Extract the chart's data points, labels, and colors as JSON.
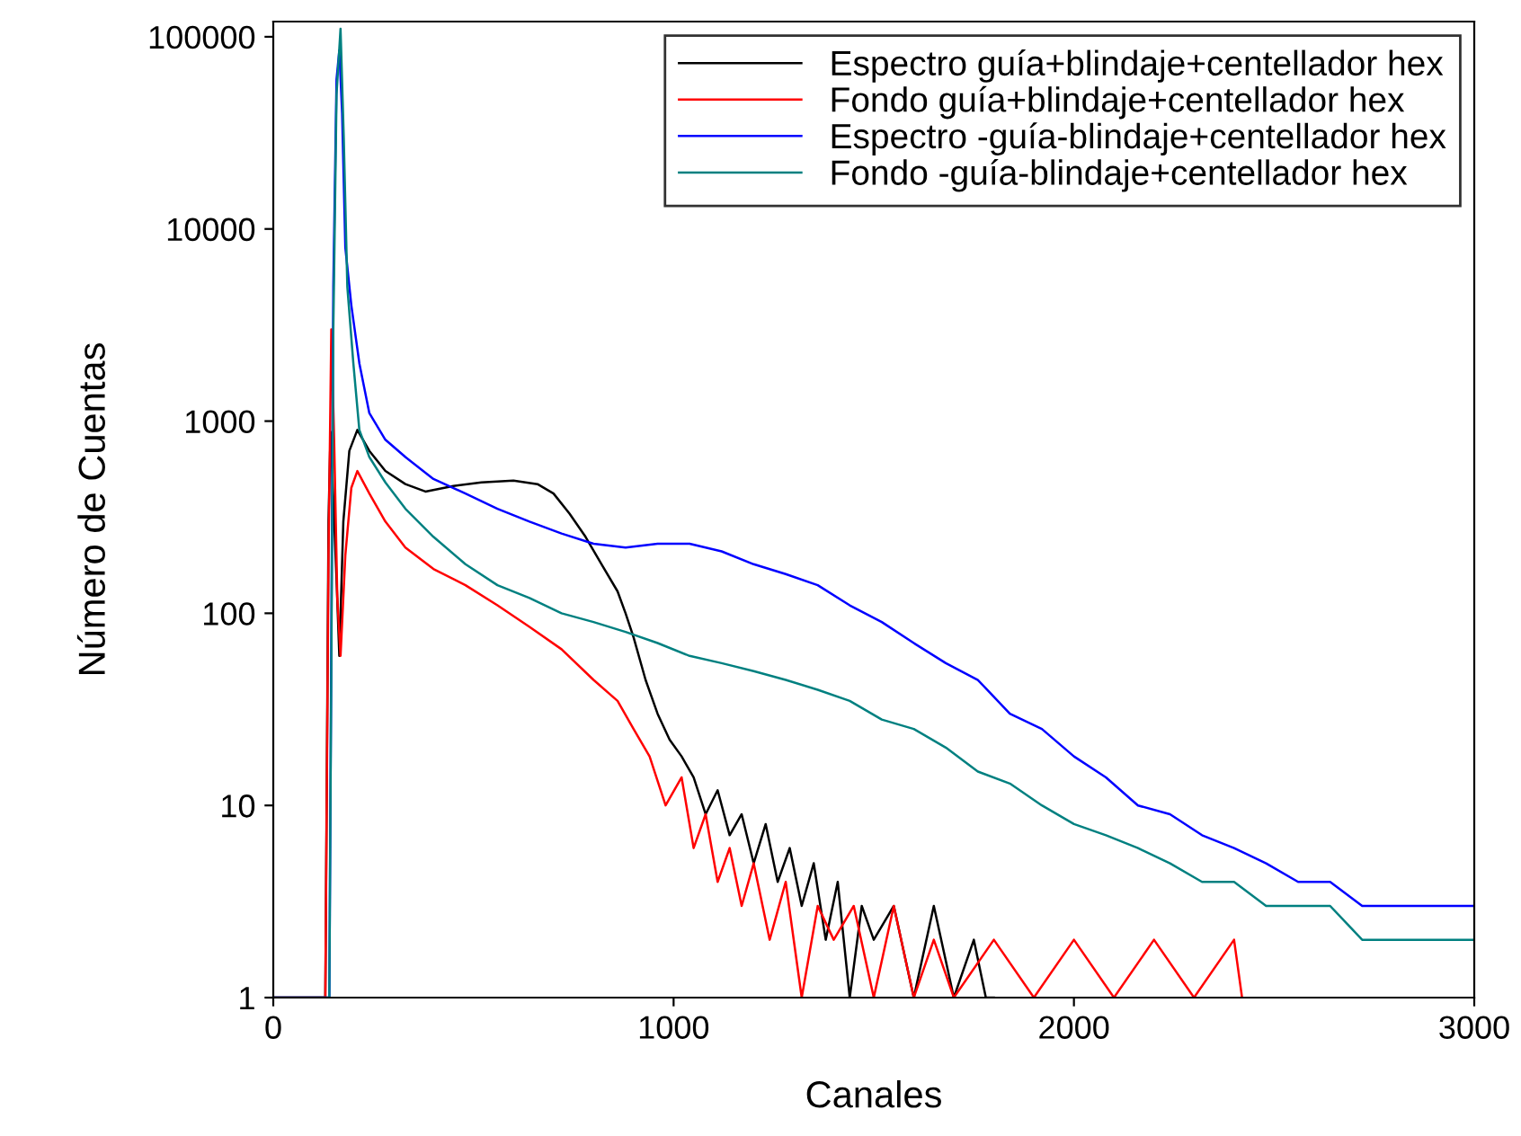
{
  "chart_data": {
    "type": "line",
    "xlabel": "Canales",
    "ylabel": "Número de Cuentas",
    "log": "y",
    "xlim": [
      0,
      3000
    ],
    "ylim": [
      1,
      120000
    ],
    "xticks": [
      0,
      1000,
      2000,
      3000
    ],
    "yticks": [
      1,
      10,
      100,
      1000,
      10000,
      100000
    ],
    "grid": false,
    "legend": "top right",
    "marker": "none",
    "line_style": "solid",
    "series": [
      {
        "name": "Espectro guía+blindaje+centellador hex",
        "color": "#000000",
        "x": [
          0,
          130,
          138,
          143,
          150,
          158,
          165,
          175,
          190,
          210,
          240,
          280,
          330,
          380,
          450,
          520,
          600,
          660,
          700,
          740,
          780,
          820,
          860,
          880,
          900,
          930,
          960,
          990,
          1020,
          1050,
          1080,
          1110,
          1140,
          1170,
          1200,
          1230,
          1260,
          1290,
          1320,
          1350,
          1380,
          1410,
          1440,
          1470,
          1500,
          1550,
          1600,
          1650,
          1700,
          1750,
          1780,
          1800
        ],
        "values": [
          1,
          1,
          300,
          880,
          400,
          150,
          60,
          300,
          700,
          900,
          700,
          550,
          470,
          430,
          460,
          480,
          490,
          470,
          420,
          330,
          250,
          180,
          130,
          100,
          75,
          45,
          30,
          22,
          18,
          14,
          9,
          12,
          7,
          9,
          5,
          8,
          4,
          6,
          3,
          5,
          2,
          4,
          1,
          3,
          2,
          3,
          1,
          3,
          1,
          2,
          1,
          1
        ]
      },
      {
        "name": "Fondo guía+blindaje+centellador hex",
        "color": "#ff0000",
        "x": [
          0,
          130,
          138,
          145,
          152,
          160,
          168,
          180,
          195,
          210,
          240,
          280,
          330,
          400,
          480,
          560,
          640,
          720,
          800,
          860,
          900,
          940,
          980,
          1020,
          1050,
          1080,
          1110,
          1140,
          1170,
          1200,
          1240,
          1280,
          1320,
          1360,
          1400,
          1450,
          1500,
          1550,
          1600,
          1650,
          1700,
          1800,
          1900,
          2000,
          2100,
          2200,
          2300,
          2400,
          2420
        ],
        "values": [
          1,
          1,
          200,
          3000,
          800,
          120,
          60,
          200,
          450,
          550,
          420,
          300,
          220,
          170,
          140,
          110,
          85,
          65,
          45,
          35,
          25,
          18,
          10,
          14,
          6,
          9,
          4,
          6,
          3,
          5,
          2,
          4,
          1,
          3,
          2,
          3,
          1,
          3,
          1,
          2,
          1,
          2,
          1,
          2,
          1,
          2,
          1,
          2,
          1
        ]
      },
      {
        "name": "Espectro -guía-blindaje+centellador hex",
        "color": "#0000ff",
        "x": [
          0,
          140,
          150,
          158,
          165,
          172,
          180,
          195,
          215,
          240,
          280,
          330,
          400,
          480,
          560,
          640,
          720,
          800,
          880,
          960,
          1040,
          1120,
          1200,
          1280,
          1360,
          1440,
          1520,
          1600,
          1680,
          1760,
          1840,
          1920,
          2000,
          2080,
          2160,
          2240,
          2320,
          2400,
          2480,
          2560,
          2640,
          2720,
          2800,
          2880,
          2960,
          3000
        ],
        "values": [
          1,
          1,
          5000,
          60000,
          85000,
          40000,
          8000,
          4000,
          2000,
          1100,
          800,
          650,
          500,
          420,
          350,
          300,
          260,
          230,
          220,
          230,
          230,
          210,
          180,
          160,
          140,
          110,
          90,
          70,
          55,
          45,
          30,
          25,
          18,
          14,
          10,
          9,
          7,
          6,
          5,
          4,
          4,
          3,
          3,
          3,
          3,
          3
        ]
      },
      {
        "name": "Fondo -guía-blindaje+centellador hex",
        "color": "#008080",
        "x": [
          0,
          140,
          150,
          158,
          168,
          176,
          185,
          200,
          215,
          240,
          280,
          330,
          400,
          480,
          560,
          640,
          720,
          800,
          880,
          960,
          1040,
          1120,
          1200,
          1280,
          1360,
          1440,
          1520,
          1600,
          1680,
          1760,
          1840,
          1920,
          2000,
          2080,
          2160,
          2240,
          2320,
          2400,
          2480,
          2560,
          2640,
          2720,
          2800,
          2880,
          2960,
          3000
        ],
        "values": [
          1,
          1,
          3000,
          50000,
          110000,
          30000,
          5000,
          2000,
          900,
          650,
          480,
          350,
          250,
          180,
          140,
          120,
          100,
          90,
          80,
          70,
          60,
          55,
          50,
          45,
          40,
          35,
          28,
          25,
          20,
          15,
          13,
          10,
          8,
          7,
          6,
          5,
          4,
          4,
          3,
          3,
          3,
          2,
          2,
          2,
          2,
          2
        ]
      }
    ]
  }
}
